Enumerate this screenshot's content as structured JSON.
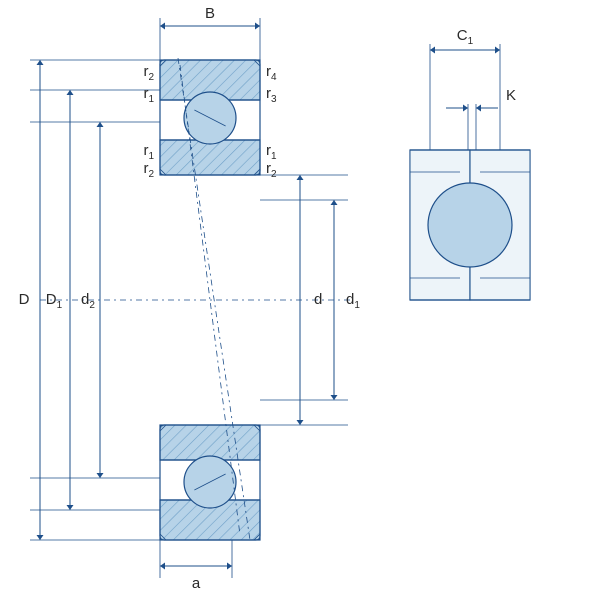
{
  "colors": {
    "stroke": "#1e4f8a",
    "fill": "#b7d3e8",
    "hatch": "#6fa0c8",
    "bg": "#ffffff",
    "text": "#2a2a2a"
  },
  "labels": {
    "B": "B",
    "D": "D",
    "D1": "D",
    "D1_sub": "1",
    "d2": "d",
    "d2_sub": "2",
    "d": "d",
    "d1": "d",
    "d1_sub": "1",
    "a": "a",
    "C1": "C",
    "C1_sub": "1",
    "K": "K",
    "r1": "r",
    "r1_sub": "1",
    "r2": "r",
    "r2_sub": "2",
    "r3": "r",
    "r3_sub": "3",
    "r4": "r",
    "r4_sub": "4"
  },
  "geom": {
    "arrow": 5
  }
}
